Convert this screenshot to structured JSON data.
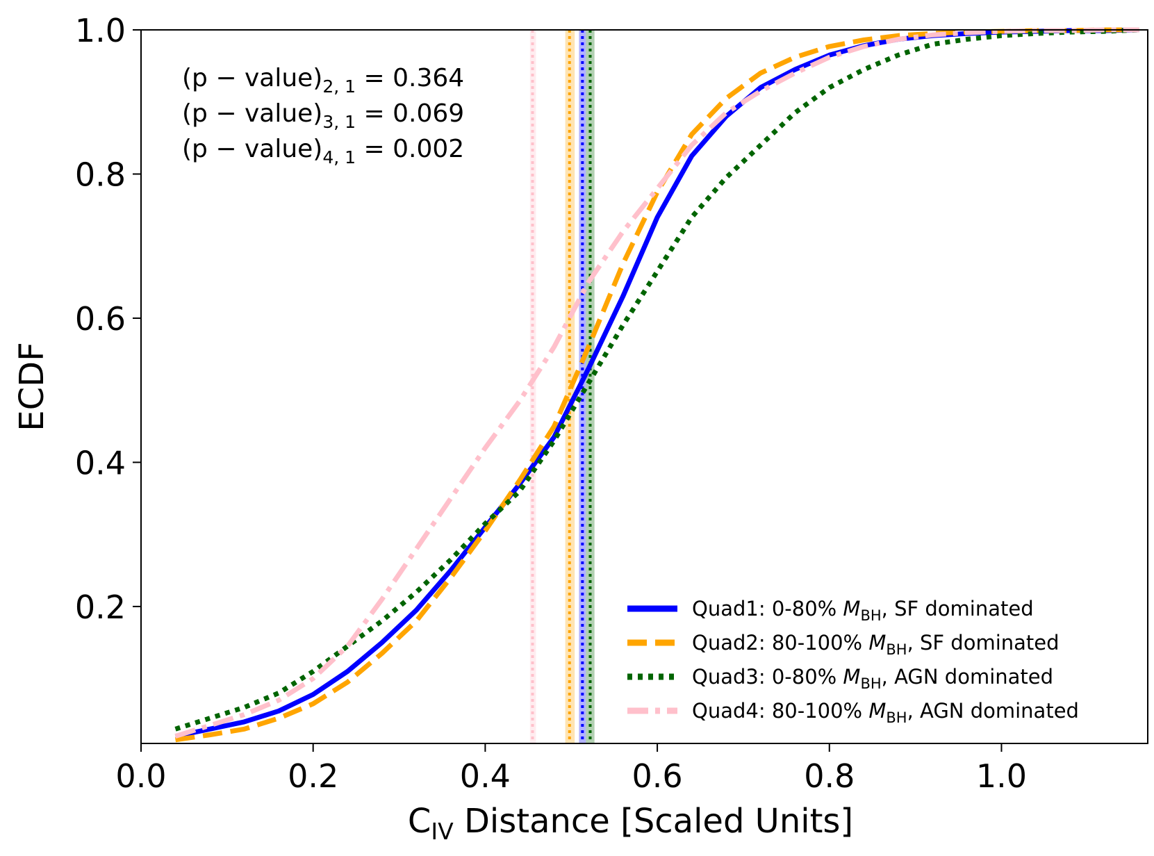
{
  "chart_data": {
    "type": "line",
    "xlabel": {
      "main": "C",
      "sub": "IV",
      "rest": " Distance [Scaled Units]"
    },
    "ylabel": "ECDF",
    "xlim": [
      0.0,
      1.17
    ],
    "ylim": [
      0.01,
      1.0
    ],
    "xticks": [
      {
        "value": 0.0,
        "label": "0.0"
      },
      {
        "value": 0.2,
        "label": "0.2"
      },
      {
        "value": 0.4,
        "label": "0.4"
      },
      {
        "value": 0.6,
        "label": "0.6"
      },
      {
        "value": 0.8,
        "label": "0.8"
      },
      {
        "value": 1.0,
        "label": "1.0"
      }
    ],
    "yticks": [
      {
        "value": 0.2,
        "label": "0.2"
      },
      {
        "value": 0.4,
        "label": "0.4"
      },
      {
        "value": 0.6,
        "label": "0.6"
      },
      {
        "value": 0.8,
        "label": "0.8"
      },
      {
        "value": 1.0,
        "label": "1.0"
      }
    ],
    "annotations": [
      {
        "pre": "(p − value)",
        "sub": "2, 1",
        "post": " = 0.364"
      },
      {
        "pre": "(p − value)",
        "sub": "3, 1",
        "post": " = 0.069"
      },
      {
        "pre": "(p − value)",
        "sub": "4, 1",
        "post": " = 0.002"
      }
    ],
    "legend_position": "lower-right",
    "series": [
      {
        "name": "Quad1",
        "legend": {
          "pre": "Quad1: 0-80% ",
          "m": "M",
          "sub": "BH",
          "post": ", SF dominated"
        },
        "color": "#0000ff",
        "style": "solid",
        "median": 0.513,
        "band": [
          0.509,
          0.517
        ],
        "x": [
          0.04,
          0.08,
          0.12,
          0.16,
          0.2,
          0.24,
          0.28,
          0.32,
          0.36,
          0.4,
          0.44,
          0.48,
          0.52,
          0.56,
          0.6,
          0.64,
          0.68,
          0.72,
          0.76,
          0.8,
          0.84,
          0.88,
          0.92,
          0.96,
          1.0,
          1.04,
          1.08,
          1.12,
          1.16
        ],
        "y": [
          0.02,
          0.03,
          0.04,
          0.055,
          0.078,
          0.11,
          0.15,
          0.195,
          0.25,
          0.31,
          0.37,
          0.435,
          0.53,
          0.63,
          0.74,
          0.825,
          0.88,
          0.92,
          0.945,
          0.965,
          0.978,
          0.987,
          0.992,
          0.995,
          0.997,
          0.998,
          0.999,
          0.999,
          1.0
        ]
      },
      {
        "name": "Quad2",
        "legend": {
          "pre": "Quad2: 80-100% ",
          "m": "M",
          "sub": "BH",
          "post": ", SF dominated"
        },
        "color": "#ffa500",
        "style": "dashed",
        "median": 0.498,
        "band": [
          0.493,
          0.504
        ],
        "x": [
          0.04,
          0.08,
          0.12,
          0.16,
          0.2,
          0.24,
          0.28,
          0.32,
          0.36,
          0.4,
          0.44,
          0.48,
          0.52,
          0.56,
          0.6,
          0.64,
          0.68,
          0.72,
          0.76,
          0.8,
          0.84,
          0.88,
          0.92,
          0.96,
          1.0,
          1.04,
          1.08,
          1.12,
          1.16
        ],
        "y": [
          0.015,
          0.022,
          0.03,
          0.045,
          0.065,
          0.095,
          0.135,
          0.18,
          0.24,
          0.305,
          0.375,
          0.45,
          0.56,
          0.675,
          0.775,
          0.855,
          0.905,
          0.94,
          0.962,
          0.977,
          0.986,
          0.992,
          0.995,
          0.997,
          0.998,
          0.999,
          0.999,
          1.0,
          1.0
        ]
      },
      {
        "name": "Quad3",
        "legend": {
          "pre": "Quad3: 0-80% ",
          "m": "M",
          "sub": "BH",
          "post": ", AGN dominated"
        },
        "color": "#006400",
        "style": "dotted",
        "median": 0.522,
        "band": [
          0.517,
          0.527
        ],
        "x": [
          0.04,
          0.08,
          0.12,
          0.16,
          0.2,
          0.24,
          0.28,
          0.32,
          0.36,
          0.4,
          0.44,
          0.48,
          0.52,
          0.56,
          0.6,
          0.64,
          0.68,
          0.72,
          0.76,
          0.8,
          0.84,
          0.88,
          0.92,
          0.96,
          1.0,
          1.04,
          1.08,
          1.12,
          1.16
        ],
        "y": [
          0.03,
          0.045,
          0.06,
          0.08,
          0.11,
          0.145,
          0.18,
          0.22,
          0.265,
          0.315,
          0.36,
          0.43,
          0.51,
          0.59,
          0.665,
          0.74,
          0.795,
          0.84,
          0.885,
          0.92,
          0.945,
          0.965,
          0.98,
          0.987,
          0.992,
          0.995,
          0.997,
          0.998,
          1.0
        ]
      },
      {
        "name": "Quad4",
        "legend": {
          "pre": "Quad4: 80-100% ",
          "m": "M",
          "sub": "BH",
          "post": ", AGN dominated"
        },
        "color": "#ffc0cb",
        "style": "dashdot",
        "median": 0.455,
        "band": [
          0.452,
          0.459
        ],
        "x": [
          0.04,
          0.08,
          0.12,
          0.16,
          0.2,
          0.24,
          0.28,
          0.32,
          0.36,
          0.4,
          0.44,
          0.48,
          0.52,
          0.56,
          0.6,
          0.64,
          0.68,
          0.72,
          0.76,
          0.8,
          0.84,
          0.88,
          0.92,
          0.96,
          1.0,
          1.04,
          1.08,
          1.12,
          1.16
        ],
        "y": [
          0.02,
          0.035,
          0.05,
          0.07,
          0.1,
          0.145,
          0.21,
          0.28,
          0.35,
          0.42,
          0.485,
          0.56,
          0.65,
          0.72,
          0.78,
          0.84,
          0.885,
          0.915,
          0.94,
          0.962,
          0.977,
          0.987,
          0.993,
          0.996,
          0.998,
          0.999,
          0.999,
          1.0,
          1.0
        ]
      }
    ]
  }
}
